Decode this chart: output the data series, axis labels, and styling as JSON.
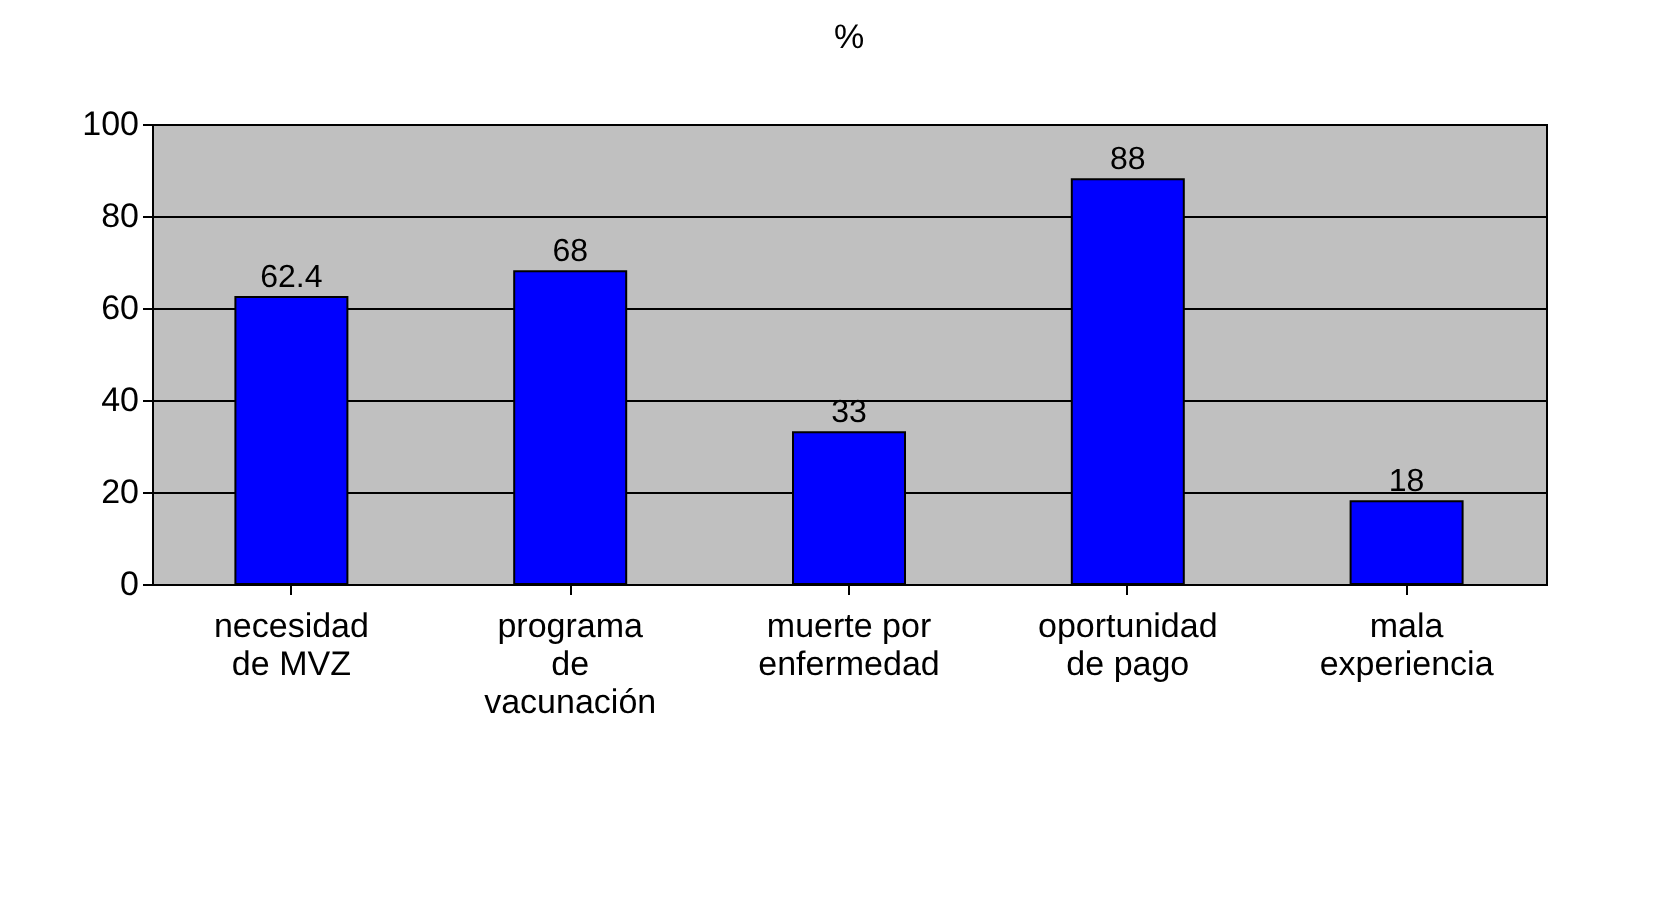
{
  "chart_data": {
    "type": "bar",
    "title": "%",
    "categories": [
      "necesidad de MVZ",
      "programa de vacunación",
      "muerte por enfermedad",
      "oportunidad de pago",
      "mala experiencia"
    ],
    "values": [
      62.4,
      68,
      33,
      88,
      18
    ],
    "color": "#0000ff",
    "ylim": [
      0,
      100
    ],
    "yticks": [
      0,
      20,
      40,
      60,
      80,
      100
    ],
    "grid": "y",
    "data_labels": true
  }
}
